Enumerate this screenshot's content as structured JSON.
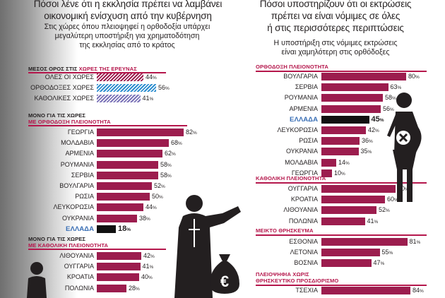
{
  "left": {
    "title_line1": "Πόσοι λένε ότι η εκκλησία πρέπει να λαμβάνει",
    "title_line2": "οικονομική ενίσχυση από την κυβέρνηση",
    "subtitle_line1": "Στις χώρες όπου πλειοψηφεί η ορθοδοξία υπάρχει",
    "subtitle_line2": "μεγαλύτερη υποστήριξη για χρηματοδότηση",
    "subtitle_line3": "της εκκλησίας από το κράτος",
    "sections": [
      {
        "label_prefix": "ΜΕΣΟΣ ΟΡΟΣ ΣΤΙΣ ",
        "label_main": "ΧΩΡΕΣ ΤΗΣ ΕΡΕΥΝΑΣ"
      },
      {
        "label_prefix": "ΜΟΝΟ ΓΙΑ ΤΙΣ ΧΩΡΕΣ",
        "label_main": "ΜΕ ΟΡΘΟΔΟΞΗ ΠΛΕΙΟΝΟΤΗΤΑ"
      },
      {
        "label_prefix": "ΜΟΝΟ ΓΙΑ ΤΙΣ ΧΩΡΕΣ",
        "label_main": "ΜΕ ΚΑΘΟΛΙΚΗ ΠΛΕΙΟΝΟΤΗΤΑ"
      }
    ]
  },
  "right": {
    "title_line1": "Πόσοι υποστηρίζουν ότι οι εκτρώσεις",
    "title_line2": "πρέπει να είναι νόμιμες σε όλες",
    "title_line3": "ή στις περισσότερες περιπτώσεις",
    "subtitle_line1": "Η υποστήριξη στις νόμιμες εκτρώσεις",
    "subtitle_line2": "είναι χαμηλότερη στις ορθόδοξες",
    "sections": [
      {
        "label_main": "ΟΡΘΟΔΟΞΗ ΠΛΕΙΟΝΟΤΗΤΑ"
      },
      {
        "label_main": "ΚΑΘΟΛΙΚΗ ΠΛΕΙΟΝΟΤΗΤΑ"
      },
      {
        "label_main": "ΜΕΙΚΤΟ ΘΡΗΣΚΕΥΜΑ"
      },
      {
        "label_main": "ΠΛΕΙΟΨΗΦΙΑ ΧΩΡΙΣ",
        "label_line2": "ΘΡΗΣΚΕΥΤΙΚΟ ΠΡΟΣΔΙΟΡΙΣΜΟ"
      }
    ]
  },
  "colors": {
    "bar": "#9c1d4e",
    "highlight_bar": "#111111",
    "highlight_label": "#3a6fb5",
    "section_label": "#b5174c",
    "stripe_orthodox": "#2f8fd0",
    "stripe_catholic": "#7c74b8"
  },
  "icons": [
    "priest-icon",
    "money-bag-euro-icon",
    "pregnant-woman-icon",
    "crossed-circle-icon",
    "child-icon"
  ],
  "chart_data": [
    {
      "type": "bar",
      "orientation": "horizontal",
      "unit": "%",
      "groups": [
        {
          "name": "ΧΩΡΕΣ ΤΗΣ ΕΡΕΥΝΑΣ",
          "categories": [
            "ΟΛΕΣ ΟΙ ΧΩΡΕΣ",
            "ΟΡΘΟΔΟΞΕΣ ΧΩΡΕΣ",
            "ΚΑΘΟΛΙΚΕΣ ΧΩΡΕΣ"
          ],
          "values": [
            44,
            56,
            41
          ]
        },
        {
          "name": "ΟΡΘΟΔΟΞΗ ΠΛΕΙΟΝΟΤΗΤΑ",
          "categories": [
            "ΓΕΩΡΓΙΑ",
            "ΜΟΛΔΑΒΙΑ",
            "ΑΡΜΕΝΙΑ",
            "ΡΟΥΜΑΝΙΑ",
            "ΣΕΡΒΙΑ",
            "ΒΟΥΛΓΑΡΙΑ",
            "ΡΩΣΙΑ",
            "ΛΕΥΚΟΡΩΣΙΑ",
            "ΟΥΚΡΑΝΙΑ",
            "ΕΛΛΑΔΑ"
          ],
          "values": [
            82,
            68,
            62,
            58,
            58,
            52,
            50,
            44,
            38,
            18
          ],
          "highlight": "ΕΛΛΑΔΑ"
        },
        {
          "name": "ΚΑΘΟΛΙΚΗ ΠΛΕΙΟΝΟΤΗΤΑ",
          "categories": [
            "ΛΙΘΟΥΑΝΙΑ",
            "ΟΥΓΓΑΡΙΑ",
            "ΚΡΟΑΤΙΑ",
            "ΠΟΛΩΝΙΑ"
          ],
          "values": [
            42,
            41,
            40,
            28
          ]
        }
      ]
    },
    {
      "type": "bar",
      "orientation": "horizontal",
      "unit": "%",
      "groups": [
        {
          "name": "ΟΡΘΟΔΟΞΗ ΠΛΕΙΟΝΟΤΗΤΑ",
          "categories": [
            "ΒΟΥΛΓΑΡΙΑ",
            "ΣΕΡΒΙΑ",
            "ΡΟΥΜΑΝΙΑ",
            "ΑΡΜΕΝΙΑ",
            "ΕΛΛΑΔΑ",
            "ΛΕΥΚΟΡΩΣΙΑ",
            "ΡΩΣΙΑ",
            "ΟΥΚΡΑΝΙΑ",
            "ΜΟΛΔΑΒΙΑ",
            "ΓΕΩΡΓΙΑ"
          ],
          "values": [
            80,
            63,
            58,
            56,
            45,
            42,
            36,
            35,
            14,
            10
          ],
          "highlight": "ΕΛΛΑΔΑ"
        },
        {
          "name": "ΚΑΘΟΛΙΚΗ ΠΛΕΙΟΝΟΤΗΤΑ",
          "categories": [
            "ΟΥΓΓΑΡΙΑ",
            "ΚΡΟΑΤΙΑ",
            "ΛΙΘΟΥΑΝΙΑ",
            "ΠΟΛΩΝΙΑ"
          ],
          "values": [
            70,
            60,
            52,
            41
          ]
        },
        {
          "name": "ΜΕΙΚΤΟ ΘΡΗΣΚΕΥΜΑ",
          "categories": [
            "ΕΣΘΟΝΙΑ",
            "ΛΕΤΟΝΙΑ",
            "ΒΟΣΝΙΑ"
          ],
          "values": [
            81,
            55,
            47
          ]
        },
        {
          "name": "ΠΛΕΙΟΨΗΦΙΑ ΧΩΡΙΣ ΘΡΗΣΚΕΥΤΙΚΟ ΠΡΟΣΔΙΟΡΙΣΜΟ",
          "categories": [
            "ΤΣΕΧΙΑ"
          ],
          "values": [
            84
          ]
        }
      ]
    }
  ]
}
